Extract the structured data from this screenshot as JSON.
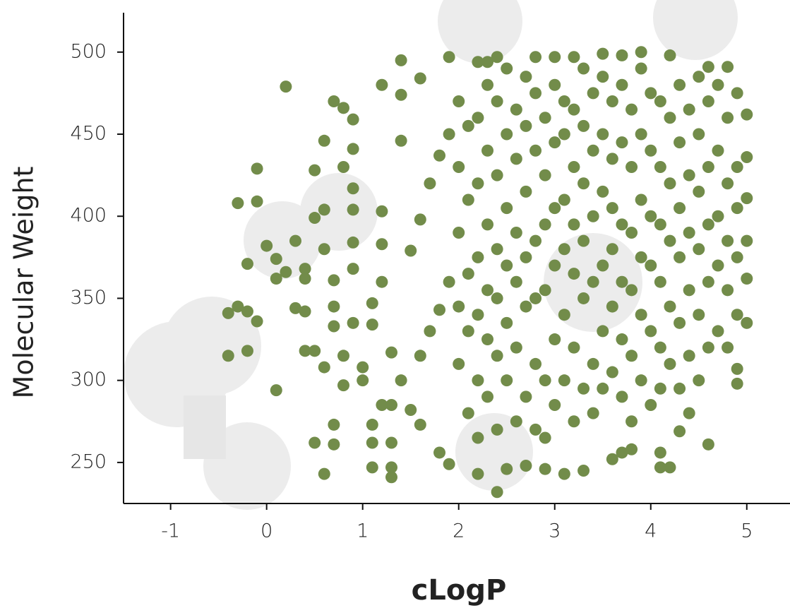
{
  "chart_data": {
    "type": "scatter",
    "x_label": "cLogP",
    "y_label": "Molecular Weight",
    "color": "#728c4a",
    "xlim": [
      -1.49,
      5.45
    ],
    "ylim": [
      225,
      524
    ],
    "xticks": [
      -1,
      0,
      1,
      2,
      3,
      4,
      5
    ],
    "yticks": [
      250,
      300,
      350,
      400,
      450,
      500
    ],
    "x": [
      0.2,
      -0.1,
      -0.3,
      -0.1,
      -0.2,
      0,
      0.1,
      0.2,
      0.3,
      0.1,
      0.4,
      0.4,
      -0.4,
      -0.3,
      -0.2,
      -0.1,
      -0.4,
      -0.2,
      0.1,
      0.3,
      0.4,
      0.4,
      0.5,
      0.5,
      0.5,
      0.6,
      0.6,
      0.6,
      0.7,
      0.6,
      0.5,
      0.6,
      0.7,
      0.7,
      0.7,
      0.7,
      0.8,
      0.8,
      0.8,
      0.8,
      0.7,
      0.9,
      0.9,
      0.9,
      0.9,
      0.9,
      0.9,
      0.9,
      1.0,
      1.0,
      1.1,
      1.1,
      1.1,
      1.2,
      1.3,
      1.3,
      1.3,
      1.3,
      1.2,
      1.4,
      1.6,
      1.4,
      1.4,
      1.2,
      1.2,
      1.2,
      1.1,
      1.1,
      1.3,
      1.4,
      1.5,
      1.6,
      1.8,
      1.9,
      1.6,
      1.7,
      1.8,
      1.9,
      1.5,
      1.6,
      1.7,
      1.8,
      1.9,
      1.9,
      2.2,
      2.3,
      2.4,
      2.2,
      2.4,
      2.5,
      2.7,
      2.9,
      3.1,
      3.3,
      3.6,
      3.7,
      3.8,
      4.1,
      4.1,
      4.2,
      4.6,
      4.3,
      4.4,
      4.9,
      4.9,
      5.0,
      5.0,
      5.0,
      5.0,
      5.0,
      5.0,
      4.6,
      4.8,
      4.2,
      3.9,
      3.5,
      3.7,
      3.2,
      3.0,
      2.8,
      2,
      2,
      2,
      2,
      2,
      2.1,
      2.1,
      2.1,
      2.1,
      2.1,
      2.2,
      2.2,
      2.2,
      2.2,
      2.2,
      2.2,
      2.3,
      2.3,
      2.3,
      2.3,
      2.3,
      2.3,
      2.4,
      2.4,
      2.4,
      2.4,
      2.4,
      2.4,
      2.5,
      2.5,
      2.5,
      2.5,
      2.5,
      2.5,
      2.6,
      2.6,
      2.6,
      2.6,
      2.6,
      2.6,
      2.7,
      2.7,
      2.7,
      2.7,
      2.7,
      2.7,
      2.8,
      2.8,
      2.8,
      2.8,
      2.8,
      2.8,
      2.9,
      2.9,
      2.9,
      2.9,
      2.9,
      2.9,
      3.0,
      3.0,
      3.0,
      3.0,
      3.0,
      3.0,
      3.1,
      3.1,
      3.1,
      3.1,
      3.1,
      3.1,
      3.2,
      3.2,
      3.2,
      3.2,
      3.2,
      3.2,
      3.3,
      3.3,
      3.3,
      3.3,
      3.3,
      3.3,
      3.4,
      3.4,
      3.4,
      3.4,
      3.4,
      3.4,
      3.5,
      3.5,
      3.5,
      3.5,
      3.5,
      3.5,
      3.6,
      3.6,
      3.6,
      3.6,
      3.6,
      3.6,
      3.7,
      3.7,
      3.7,
      3.7,
      3.7,
      3.7,
      3.8,
      3.8,
      3.8,
      3.8,
      3.8,
      3.8,
      3.9,
      3.9,
      3.9,
      3.9,
      3.9,
      3.9,
      4.0,
      4.0,
      4.0,
      4.0,
      4.0,
      4.0,
      4.1,
      4.1,
      4.1,
      4.1,
      4.1,
      4.1,
      4.2,
      4.2,
      4.2,
      4.2,
      4.2,
      4.3,
      4.3,
      4.3,
      4.3,
      4.3,
      4.3,
      4.4,
      4.4,
      4.4,
      4.4,
      4.4,
      4.5,
      4.5,
      4.5,
      4.5,
      4.5,
      4.5,
      4.6,
      4.6,
      4.6,
      4.6,
      4.6,
      4.7,
      4.7,
      4.7,
      4.7,
      4.7,
      4.8,
      4.8,
      4.8,
      4.8,
      4.8,
      4.9,
      4.9,
      4.9,
      4.9,
      4.9
    ],
    "y": [
      479,
      429,
      408,
      409,
      371,
      382,
      374,
      366,
      385,
      362,
      368,
      362,
      341,
      345,
      342,
      336,
      315,
      318,
      294,
      344,
      342,
      318,
      318,
      399,
      428,
      446,
      404,
      380,
      361,
      308,
      262,
      243,
      261,
      273,
      333,
      345,
      315,
      297,
      430,
      466,
      470,
      459,
      441,
      417,
      404,
      384,
      368,
      335,
      308,
      300,
      273,
      262,
      247,
      285,
      285,
      262,
      247,
      241,
      480,
      495,
      484,
      474,
      446,
      403,
      383,
      360,
      347,
      334,
      317,
      300,
      282,
      273,
      256,
      249,
      315,
      330,
      343,
      360,
      379,
      398,
      420,
      437,
      450,
      497,
      494,
      494,
      497,
      243,
      232,
      246,
      248,
      246,
      243,
      245,
      252,
      256,
      258,
      256,
      247,
      247,
      261,
      269,
      280,
      307,
      298,
      335,
      362,
      462,
      436,
      411,
      385,
      491,
      491,
      498,
      500,
      499,
      498,
      497,
      497,
      497,
      310,
      345,
      390,
      430,
      470,
      280,
      330,
      365,
      410,
      455,
      265,
      300,
      340,
      375,
      420,
      460,
      290,
      325,
      355,
      395,
      440,
      480,
      270,
      315,
      350,
      380,
      425,
      470,
      300,
      335,
      370,
      405,
      450,
      490,
      275,
      320,
      360,
      390,
      435,
      465,
      290,
      345,
      375,
      415,
      455,
      485,
      270,
      310,
      350,
      385,
      440,
      475,
      265,
      300,
      355,
      395,
      425,
      460,
      285,
      325,
      370,
      405,
      445,
      480,
      300,
      340,
      380,
      410,
      450,
      470,
      275,
      320,
      365,
      395,
      430,
      465,
      295,
      350,
      385,
      420,
      455,
      490,
      280,
      310,
      360,
      400,
      440,
      475,
      295,
      330,
      370,
      415,
      450,
      485,
      305,
      345,
      380,
      405,
      435,
      470,
      290,
      325,
      360,
      395,
      445,
      480,
      275,
      315,
      355,
      390,
      430,
      465,
      300,
      340,
      375,
      410,
      450,
      490,
      285,
      330,
      370,
      400,
      440,
      475,
      295,
      320,
      360,
      395,
      430,
      470,
      310,
      345,
      385,
      420,
      460,
      295,
      335,
      375,
      405,
      445,
      480,
      315,
      355,
      390,
      425,
      465,
      300,
      340,
      380,
      415,
      450,
      485,
      320,
      360,
      395,
      430,
      470,
      330,
      370,
      400,
      440,
      480,
      320,
      355,
      385,
      420,
      460,
      340,
      375,
      405,
      430,
      475
    ]
  }
}
